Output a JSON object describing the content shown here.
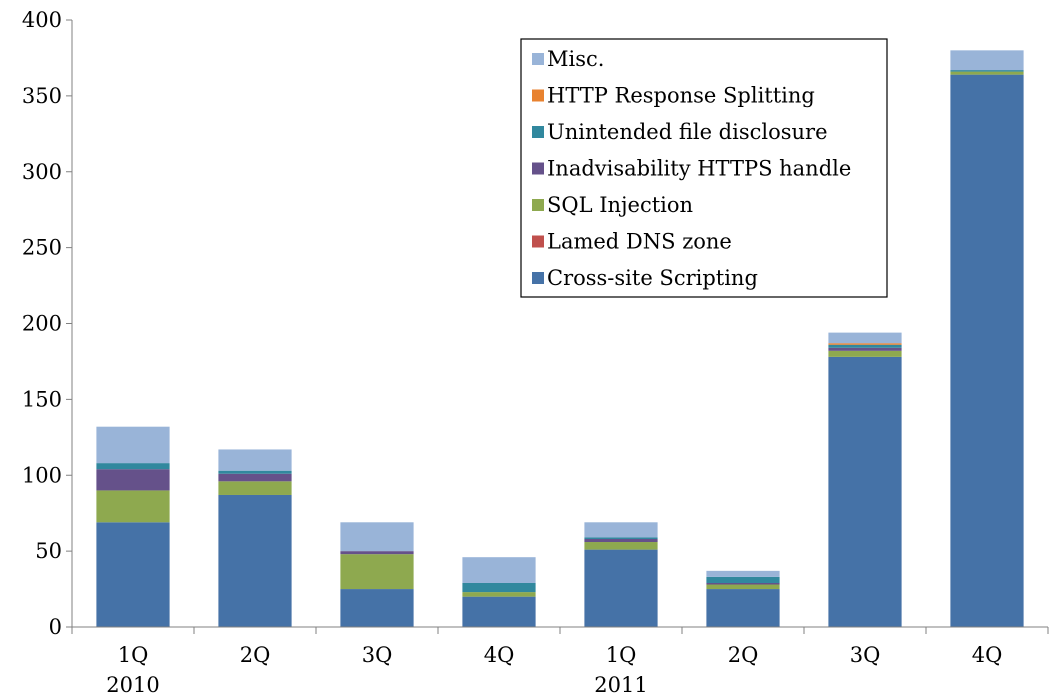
{
  "chart_data": {
    "type": "bar",
    "stacked": true,
    "title": "",
    "xlabel": "",
    "ylabel": "",
    "ylim": [
      0,
      400
    ],
    "yticks": [
      0,
      50,
      100,
      150,
      200,
      250,
      300,
      350,
      400
    ],
    "categories": [
      "1Q",
      "2Q",
      "3Q",
      "4Q",
      "1Q",
      "2Q",
      "3Q",
      "4Q"
    ],
    "year_groups": [
      {
        "label": "2010",
        "start": 0,
        "end": 3
      },
      {
        "label": "2011",
        "start": 4,
        "end": 7
      }
    ],
    "grid": false,
    "legend_position": "top-right",
    "series": [
      {
        "name": "Cross-site Scripting",
        "color": "#4572A7",
        "values": [
          69,
          87,
          25,
          20,
          51,
          25,
          178,
          364
        ]
      },
      {
        "name": "Lamed DNS zone",
        "color": "#C0504D",
        "values": [
          0,
          0,
          0,
          0,
          0,
          0,
          0,
          0
        ]
      },
      {
        "name": "SQL Injection",
        "color": "#8EA94F",
        "values": [
          21,
          9,
          23,
          3,
          5,
          3,
          4,
          2
        ]
      },
      {
        "name": "Inadvisability HTTPS handle",
        "color": "#65518A",
        "values": [
          14,
          5,
          2,
          0,
          2,
          1,
          2,
          0
        ]
      },
      {
        "name": "Unintended file disclosure",
        "color": "#31889E",
        "values": [
          4,
          2,
          0,
          6,
          1,
          4,
          2,
          1
        ]
      },
      {
        "name": "HTTP Response Splitting",
        "color": "#E8822F",
        "values": [
          0,
          0,
          0,
          0,
          0,
          0,
          1,
          0
        ]
      },
      {
        "name": "Misc.",
        "color": "#99B4D8",
        "values": [
          24,
          14,
          19,
          17,
          10,
          4,
          7,
          13
        ]
      }
    ]
  }
}
